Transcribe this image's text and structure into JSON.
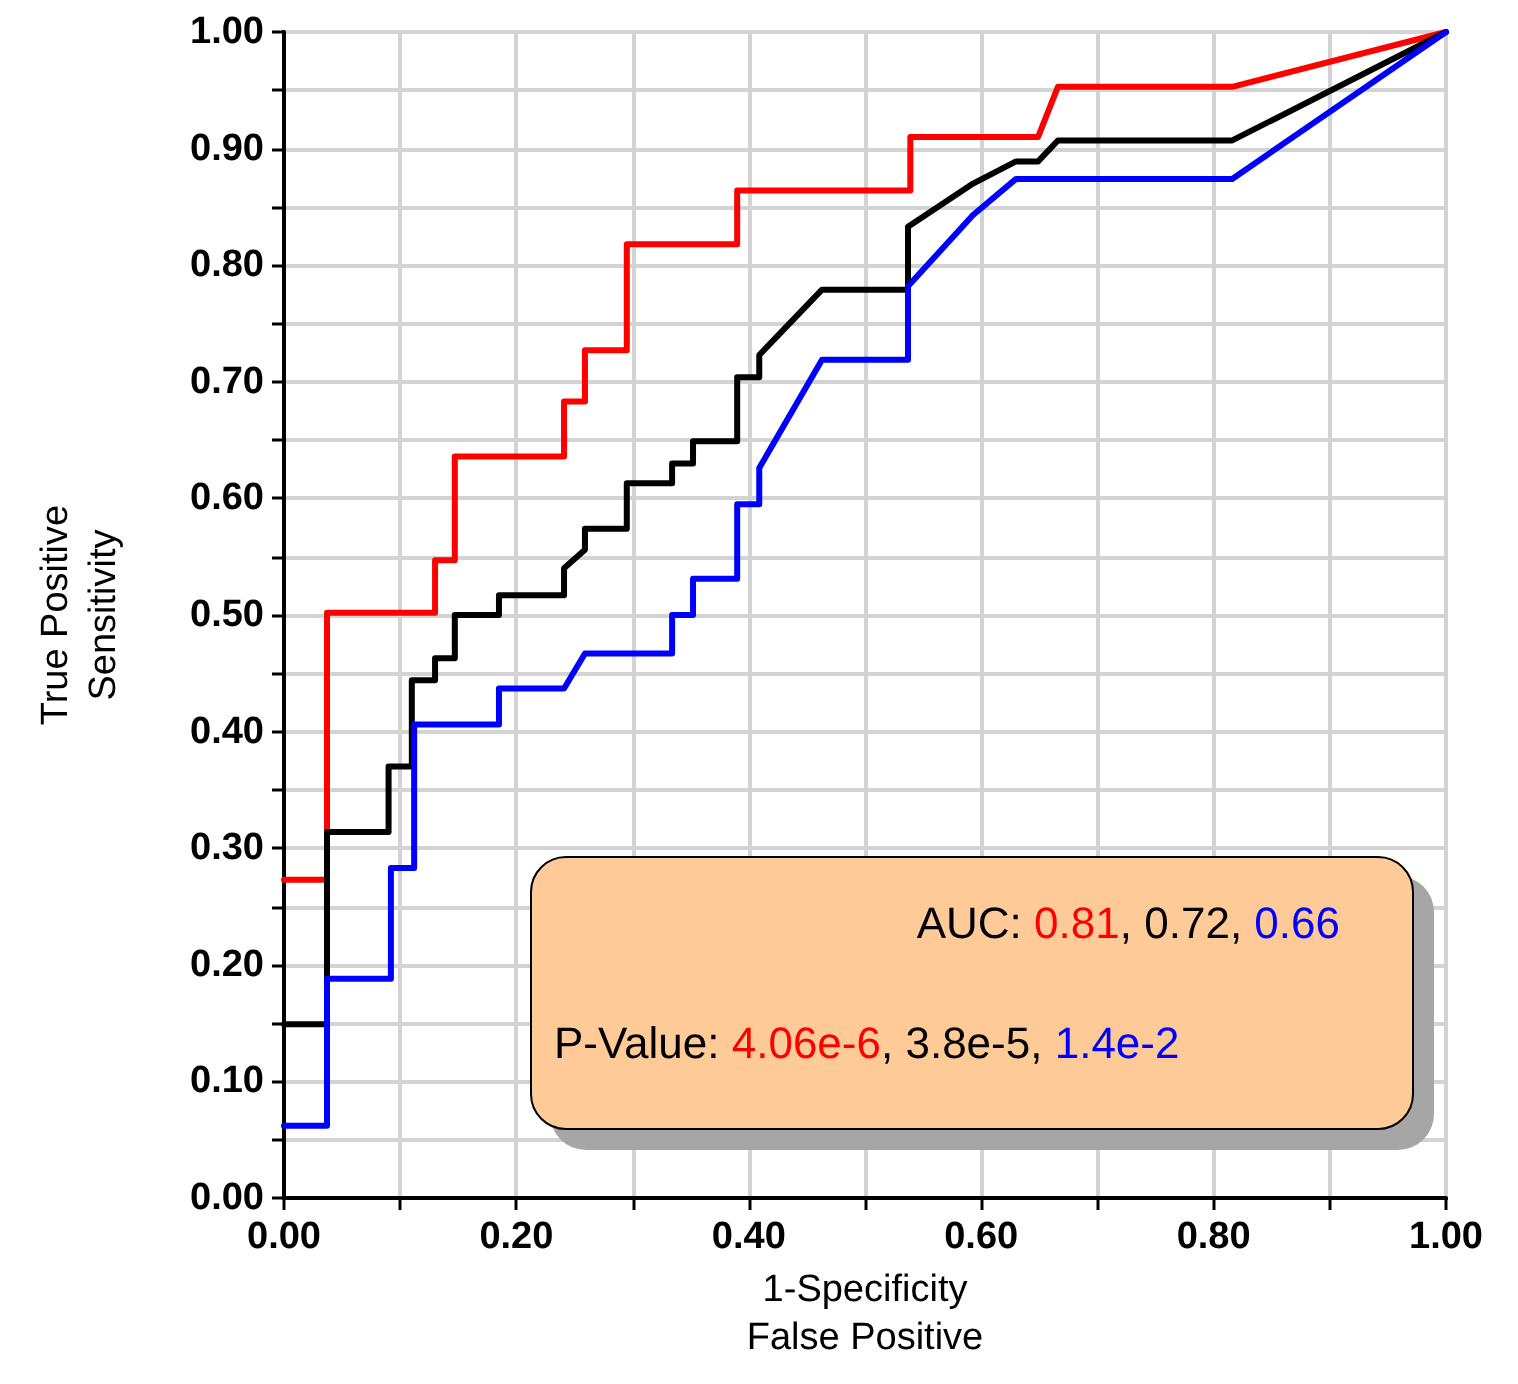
{
  "chart_data": {
    "type": "line",
    "xlabel": "1-Specificity\nFalse Positive",
    "ylabel": "True Positive\nSensitivity",
    "xlim": [
      0,
      1
    ],
    "ylim": [
      0,
      1
    ],
    "xticks": [
      {
        "value": 0,
        "label": "0.00"
      },
      {
        "value": 0.1,
        "label": null
      },
      {
        "value": 0.2,
        "label": "0.20"
      },
      {
        "value": 0.3,
        "label": null
      },
      {
        "value": 0.4,
        "label": "0.40"
      },
      {
        "value": 0.5,
        "label": null
      },
      {
        "value": 0.6,
        "label": "0.60"
      },
      {
        "value": 0.7,
        "label": null
      },
      {
        "value": 0.8,
        "label": "0.80"
      },
      {
        "value": 0.9,
        "label": null
      },
      {
        "value": 1,
        "label": "1.00"
      }
    ],
    "yticks": [
      {
        "value": 0,
        "label": "0.00"
      },
      {
        "value": 0.05,
        "label": null
      },
      {
        "value": 0.1,
        "label": "0.10"
      },
      {
        "value": 0.15,
        "label": null
      },
      {
        "value": 0.2,
        "label": "0.20"
      },
      {
        "value": 0.25,
        "label": null
      },
      {
        "value": 0.3,
        "label": "0.30"
      },
      {
        "value": 0.35,
        "label": null
      },
      {
        "value": 0.4,
        "label": "0.40"
      },
      {
        "value": 0.45,
        "label": null
      },
      {
        "value": 0.5,
        "label": "0.50"
      },
      {
        "value": 0.55,
        "label": null
      },
      {
        "value": 0.6,
        "label": "0.60"
      },
      {
        "value": 0.65,
        "label": null
      },
      {
        "value": 0.7,
        "label": "0.70"
      },
      {
        "value": 0.75,
        "label": null
      },
      {
        "value": 0.8,
        "label": "0.80"
      },
      {
        "value": 0.85,
        "label": null
      },
      {
        "value": 0.9,
        "label": "0.90"
      },
      {
        "value": 0.95,
        "label": null
      },
      {
        "value": 1,
        "label": "1.00"
      }
    ],
    "grid": true,
    "marker": "none",
    "line_style": "solid",
    "series": [
      {
        "color": "#ff0000",
        "x": [
          0,
          0.037,
          0.037,
          0.13,
          0.13,
          0.147,
          0.147,
          0.241,
          0.241,
          0.259,
          0.259,
          0.295,
          0.295,
          0.39,
          0.39,
          0.539,
          0.539,
          0.649,
          0.666,
          0.816,
          1
        ],
        "values": [
          0.273,
          0.273,
          0.502,
          0.502,
          0.547,
          0.547,
          0.636,
          0.636,
          0.683,
          0.683,
          0.727,
          0.727,
          0.818,
          0.818,
          0.864,
          0.864,
          0.91,
          0.91,
          0.953,
          0.953,
          1
        ]
      },
      {
        "color": "#000000",
        "x": [
          0,
          0.037,
          0.037,
          0.09,
          0.09,
          0.11,
          0.11,
          0.13,
          0.13,
          0.147,
          0.147,
          0.185,
          0.185,
          0.241,
          0.241,
          0.259,
          0.259,
          0.295,
          0.295,
          0.334,
          0.334,
          0.352,
          0.352,
          0.39,
          0.39,
          0.409,
          0.409,
          0.463,
          0.537,
          0.537,
          0.593,
          0.63,
          0.649,
          0.666,
          0.816,
          1
        ],
        "values": [
          0.149,
          0.149,
          0.314,
          0.314,
          0.37,
          0.37,
          0.444,
          0.444,
          0.463,
          0.463,
          0.5,
          0.5,
          0.517,
          0.517,
          0.54,
          0.556,
          0.574,
          0.574,
          0.613,
          0.613,
          0.63,
          0.63,
          0.649,
          0.649,
          0.704,
          0.704,
          0.723,
          0.779,
          0.779,
          0.833,
          0.87,
          0.889,
          0.889,
          0.907,
          0.907,
          1
        ]
      },
      {
        "color": "#0000ff",
        "x": [
          0,
          0.037,
          0.037,
          0.092,
          0.092,
          0.112,
          0.112,
          0.185,
          0.185,
          0.241,
          0.259,
          0.334,
          0.334,
          0.352,
          0.352,
          0.39,
          0.39,
          0.409,
          0.409,
          0.463,
          0.537,
          0.537,
          0.593,
          0.63,
          0.816,
          1
        ],
        "values": [
          0.062,
          0.062,
          0.188,
          0.188,
          0.283,
          0.283,
          0.406,
          0.406,
          0.437,
          0.437,
          0.467,
          0.467,
          0.5,
          0.5,
          0.531,
          0.531,
          0.595,
          0.595,
          0.626,
          0.719,
          0.719,
          0.782,
          0.843,
          0.874,
          0.874,
          1
        ]
      }
    ],
    "annotations": [
      "AUC: 0.81, 0.72, 0.66",
      "P-Value: 4.06e-6, 3.8e-5, 1.4e-2"
    ]
  }
}
